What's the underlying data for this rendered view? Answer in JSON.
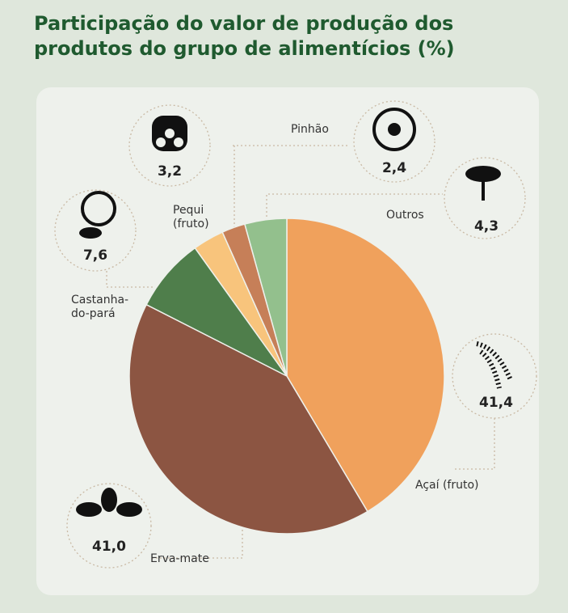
{
  "chart_data": {
    "type": "pie",
    "title": "Participação do valor de produção dos produtos do grupo de alimentícios (%)",
    "categories": [
      "Açaí (fruto)",
      "Erva-mate",
      "Castanha-do-pará",
      "Pequi (fruto)",
      "Pinhão",
      "Outros"
    ],
    "values": [
      41.4,
      41.0,
      7.6,
      3.2,
      2.4,
      4.3
    ],
    "value_labels": [
      "41,4",
      "41,0",
      "7,6",
      "3,2",
      "2,4",
      "4,3"
    ],
    "colors": [
      "#f0a15c",
      "#8c5542",
      "#4f7e4b",
      "#f8c47c",
      "#c67f58",
      "#93c08d"
    ]
  }
}
